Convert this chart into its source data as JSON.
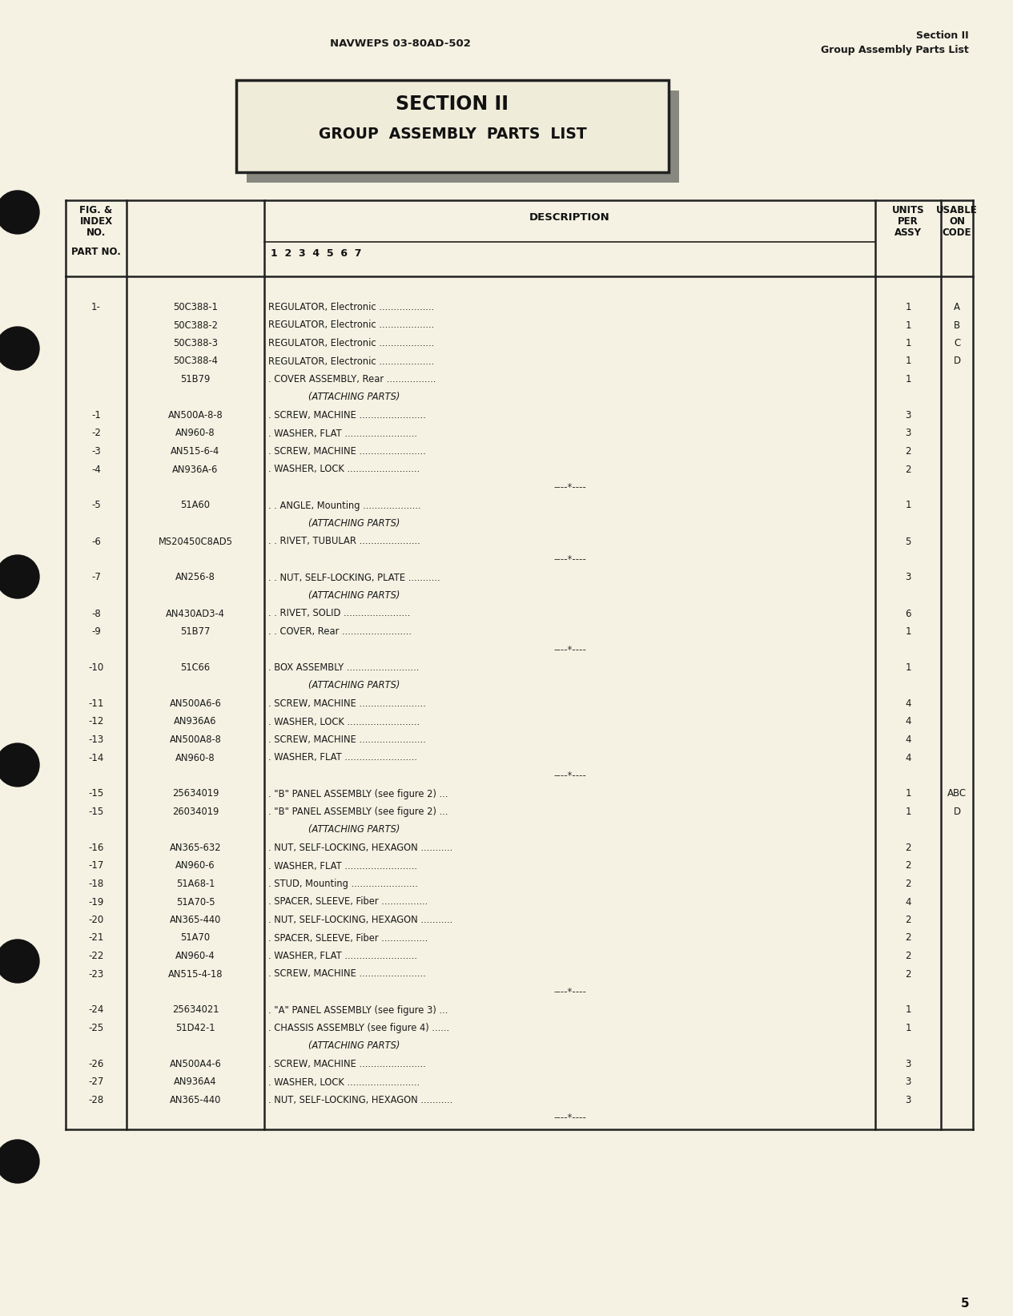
{
  "bg_color": "#f5f2e3",
  "header_left": "NAVWEPS 03-80AD-502",
  "header_right_line1": "Section II",
  "header_right_line2": "Group Assembly Parts List",
  "section_title_line1": "SECTION II",
  "section_title_line2": "GROUP  ASSEMBLY  PARTS  LIST",
  "footer_page": "5",
  "rows": [
    {
      "fig": "1-",
      "part": "50C388-1",
      "desc": "REGULATOR, Electronic ...................",
      "qty": "1",
      "code": "A"
    },
    {
      "fig": "",
      "part": "50C388-2",
      "desc": "REGULATOR, Electronic ...................",
      "qty": "1",
      "code": "B"
    },
    {
      "fig": "",
      "part": "50C388-3",
      "desc": "REGULATOR, Electronic ...................",
      "qty": "1",
      "code": "C"
    },
    {
      "fig": "",
      "part": "50C388-4",
      "desc": "REGULATOR, Electronic ...................",
      "qty": "1",
      "code": "D"
    },
    {
      "fig": "",
      "part": "51B79",
      "desc": ". COVER ASSEMBLY, Rear .................",
      "qty": "1",
      "code": ""
    },
    {
      "fig": "",
      "part": "",
      "desc": "(ATTACHING PARTS)",
      "qty": "",
      "code": ""
    },
    {
      "fig": "-1",
      "part": "AN500A-8-8",
      "desc": ". SCREW, MACHINE .......................",
      "qty": "3",
      "code": ""
    },
    {
      "fig": "-2",
      "part": "AN960-8",
      "desc": ". WASHER, FLAT .........................",
      "qty": "3",
      "code": ""
    },
    {
      "fig": "-3",
      "part": "AN515-6-4",
      "desc": ". SCREW, MACHINE .......................",
      "qty": "2",
      "code": ""
    },
    {
      "fig": "-4",
      "part": "AN936A-6",
      "desc": ". WASHER, LOCK .........................",
      "qty": "2",
      "code": ""
    },
    {
      "fig": "",
      "part": "",
      "desc": "----*----",
      "qty": "",
      "code": ""
    },
    {
      "fig": "-5",
      "part": "51A60",
      "desc": ". . ANGLE, Mounting ....................",
      "qty": "1",
      "code": ""
    },
    {
      "fig": "",
      "part": "",
      "desc": "(ATTACHING PARTS)",
      "qty": "",
      "code": ""
    },
    {
      "fig": "-6",
      "part": "MS20450C8AD5",
      "desc": ". . RIVET, TUBULAR .....................",
      "qty": "5",
      "code": ""
    },
    {
      "fig": "",
      "part": "",
      "desc": "----*----",
      "qty": "",
      "code": ""
    },
    {
      "fig": "-7",
      "part": "AN256-8",
      "desc": ". . NUT, SELF-LOCKING, PLATE ...........",
      "qty": "3",
      "code": ""
    },
    {
      "fig": "",
      "part": "",
      "desc": "(ATTACHING PARTS)",
      "qty": "",
      "code": ""
    },
    {
      "fig": "-8",
      "part": "AN430AD3-4",
      "desc": ". . RIVET, SOLID .......................",
      "qty": "6",
      "code": ""
    },
    {
      "fig": "-9",
      "part": "51B77",
      "desc": ". . COVER, Rear ........................",
      "qty": "1",
      "code": ""
    },
    {
      "fig": "",
      "part": "",
      "desc": "----*----",
      "qty": "",
      "code": ""
    },
    {
      "fig": "-10",
      "part": "51C66",
      "desc": ". BOX ASSEMBLY .........................",
      "qty": "1",
      "code": ""
    },
    {
      "fig": "",
      "part": "",
      "desc": "(ATTACHING PARTS)",
      "qty": "",
      "code": ""
    },
    {
      "fig": "-11",
      "part": "AN500A6-6",
      "desc": ". SCREW, MACHINE .......................",
      "qty": "4",
      "code": ""
    },
    {
      "fig": "-12",
      "part": "AN936A6",
      "desc": ". WASHER, LOCK .........................",
      "qty": "4",
      "code": ""
    },
    {
      "fig": "-13",
      "part": "AN500A8-8",
      "desc": ". SCREW, MACHINE .......................",
      "qty": "4",
      "code": ""
    },
    {
      "fig": "-14",
      "part": "AN960-8",
      "desc": ". WASHER, FLAT .........................",
      "qty": "4",
      "code": ""
    },
    {
      "fig": "",
      "part": "",
      "desc": "----*----",
      "qty": "",
      "code": ""
    },
    {
      "fig": "-15",
      "part": "25634019",
      "desc": ". \"B\" PANEL ASSEMBLY (see figure 2) ...",
      "qty": "1",
      "code": "ABC"
    },
    {
      "fig": "-15",
      "part": "26034019",
      "desc": ". \"B\" PANEL ASSEMBLY (see figure 2) ...",
      "qty": "1",
      "code": "D"
    },
    {
      "fig": "",
      "part": "",
      "desc": "(ATTACHING PARTS)",
      "qty": "",
      "code": ""
    },
    {
      "fig": "-16",
      "part": "AN365-632",
      "desc": ". NUT, SELF-LOCKING, HEXAGON ...........",
      "qty": "2",
      "code": ""
    },
    {
      "fig": "-17",
      "part": "AN960-6",
      "desc": ". WASHER, FLAT .........................",
      "qty": "2",
      "code": ""
    },
    {
      "fig": "-18",
      "part": "51A68-1",
      "desc": ". STUD, Mounting .......................",
      "qty": "2",
      "code": ""
    },
    {
      "fig": "-19",
      "part": "51A70-5",
      "desc": ". SPACER, SLEEVE, Fiber ................",
      "qty": "4",
      "code": ""
    },
    {
      "fig": "-20",
      "part": "AN365-440",
      "desc": ". NUT, SELF-LOCKING, HEXAGON ...........",
      "qty": "2",
      "code": ""
    },
    {
      "fig": "-21",
      "part": "51A70",
      "desc": ". SPACER, SLEEVE, Fiber ................",
      "qty": "2",
      "code": ""
    },
    {
      "fig": "-22",
      "part": "AN960-4",
      "desc": ". WASHER, FLAT .........................",
      "qty": "2",
      "code": ""
    },
    {
      "fig": "-23",
      "part": "AN515-4-18",
      "desc": ". SCREW, MACHINE .......................",
      "qty": "2",
      "code": ""
    },
    {
      "fig": "",
      "part": "",
      "desc": "----*----",
      "qty": "",
      "code": ""
    },
    {
      "fig": "-24",
      "part": "25634021",
      "desc": ". \"A\" PANEL ASSEMBLY (see figure 3) ...",
      "qty": "1",
      "code": ""
    },
    {
      "fig": "-25",
      "part": "51D42-1",
      "desc": ". CHASSIS ASSEMBLY (see figure 4) ......",
      "qty": "1",
      "code": ""
    },
    {
      "fig": "",
      "part": "",
      "desc": "(ATTACHING PARTS)",
      "qty": "",
      "code": ""
    },
    {
      "fig": "-26",
      "part": "AN500A4-6",
      "desc": ". SCREW, MACHINE .......................",
      "qty": "3",
      "code": ""
    },
    {
      "fig": "-27",
      "part": "AN936A4",
      "desc": ". WASHER, LOCK .........................",
      "qty": "3",
      "code": ""
    },
    {
      "fig": "-28",
      "part": "AN365-440",
      "desc": ". NUT, SELF-LOCKING, HEXAGON ...........",
      "qty": "3",
      "code": ""
    },
    {
      "fig": "",
      "part": "",
      "desc": "----*----",
      "qty": "",
      "code": ""
    }
  ]
}
